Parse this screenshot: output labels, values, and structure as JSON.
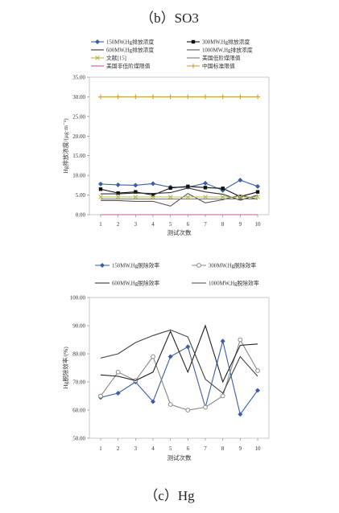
{
  "captions": {
    "top": "（b）SO3",
    "bottom": "（c）Hg"
  },
  "chart_data": [
    {
      "type": "line",
      "xlabel": "测试次数",
      "ylabel": "Hg排放浓度/(μg·m⁻³)",
      "x": [
        1,
        2,
        3,
        4,
        5,
        6,
        7,
        8,
        9,
        10
      ],
      "ylim": [
        0,
        35
      ],
      "yticks": [
        "0.00",
        "5.00",
        "10.00",
        "15.00",
        "20.00",
        "25.00",
        "30.00",
        "35.00"
      ],
      "legend_position": "top",
      "series": [
        {
          "name": "150MW,Hg排放浓度",
          "color": "#3b5ea8",
          "marker": "diamond",
          "values": [
            7.8,
            7.6,
            7.5,
            7.9,
            7.0,
            7.0,
            8.0,
            6.2,
            8.8,
            7.2
          ]
        },
        {
          "name": "300MW,Hg排放浓度",
          "color": "#111111",
          "marker": "square",
          "values": [
            6.5,
            5.5,
            5.8,
            5.0,
            6.8,
            7.2,
            6.9,
            6.7,
            4.6,
            5.8
          ]
        },
        {
          "name": "600MW,Hg排放浓度",
          "color": "#333333",
          "marker": "none",
          "values": [
            5.3,
            5.3,
            5.5,
            5.4,
            5.6,
            6.8,
            5.8,
            5.2,
            3.7,
            5.0
          ]
        },
        {
          "name": "1000MW,Hg排放浓度",
          "color": "#555555",
          "marker": "none",
          "values": [
            3.6,
            3.6,
            3.4,
            3.4,
            2.2,
            5.4,
            3.0,
            3.8,
            5.0,
            3.9
          ]
        },
        {
          "name": "文献[15]",
          "color": "#b7b74a",
          "marker": "x",
          "values": [
            4.5,
            4.5,
            4.5,
            4.5,
            4.5,
            4.5,
            4.5,
            4.5,
            4.5,
            4.5
          ]
        },
        {
          "name": "美国低阶煤限值",
          "color": "#777777",
          "marker": "none",
          "values": [
            4.0,
            4.0,
            4.0,
            4.0,
            4.0,
            4.0,
            4.0,
            4.0,
            4.0,
            4.0
          ]
        },
        {
          "name": "美国非低阶煤限值",
          "color": "#c45aa0",
          "marker": "none",
          "values": [
            0.0,
            0.0,
            0.0,
            0.0,
            0.0,
            0.0,
            0.0,
            0.0,
            0.0,
            0.0
          ]
        },
        {
          "name": "中国标准限值",
          "color": "#c8a03c",
          "marker": "plus",
          "values": [
            30,
            30,
            30,
            30,
            30,
            30,
            30,
            30,
            30,
            30
          ]
        }
      ]
    },
    {
      "type": "line",
      "xlabel": "测试次数",
      "ylabel": "Hg脱除效率/(%)",
      "x": [
        1,
        2,
        3,
        4,
        5,
        6,
        7,
        8,
        9,
        10
      ],
      "ylim": [
        50,
        100
      ],
      "yticks": [
        "50.00",
        "60.00",
        "70.00",
        "80.00",
        "90.00",
        "100.00"
      ],
      "legend_position": "top",
      "series": [
        {
          "name": "150MW,Hg脱除效率",
          "color": "#3b5ea8",
          "marker": "diamond",
          "values": [
            64.5,
            66.0,
            70.0,
            63.0,
            79.0,
            82.5,
            61.0,
            84.5,
            58.5,
            67.0
          ]
        },
        {
          "name": "300MW,Hg脱除效率",
          "color": "#888888",
          "marker": "circle",
          "values": [
            65.0,
            73.5,
            70.5,
            79.0,
            62.0,
            60.0,
            61.0,
            65.0,
            85.0,
            74.0
          ]
        },
        {
          "name": "600MW,Hg脱除效率",
          "color": "#222222",
          "marker": "none",
          "values": [
            72.5,
            72.0,
            70.5,
            73.5,
            88.0,
            73.5,
            90.0,
            70.0,
            83.0,
            83.5
          ]
        },
        {
          "name": "1000MW,Hg脱除效率",
          "color": "#444444",
          "marker": "none",
          "values": [
            78.5,
            80.0,
            84.0,
            86.5,
            88.5,
            86.0,
            71.0,
            66.0,
            79.0,
            72.0
          ]
        }
      ]
    }
  ]
}
